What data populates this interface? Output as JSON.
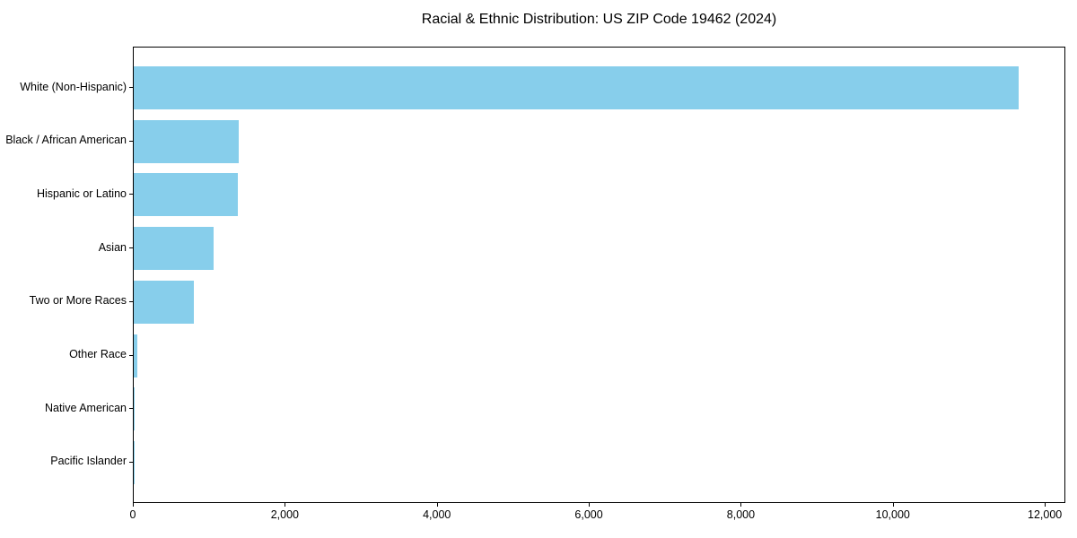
{
  "chart_data": {
    "type": "bar",
    "orientation": "horizontal",
    "title": "Racial & Ethnic Distribution: US ZIP Code 19462 (2024)",
    "categories": [
      "White (Non-Hispanic)",
      "Black / African American",
      "Hispanic or Latino",
      "Asian",
      "Two or More Races",
      "Other Race",
      "Native American",
      "Pacific Islander"
    ],
    "values": [
      11650,
      1380,
      1365,
      1050,
      790,
      45,
      10,
      4
    ],
    "xlabel": "",
    "ylabel": "",
    "xlim": [
      0,
      12270
    ],
    "x_ticks": [
      0,
      2000,
      4000,
      6000,
      8000,
      10000,
      12000
    ],
    "x_tick_labels": [
      "0",
      "2,000",
      "4,000",
      "6,000",
      "8,000",
      "10,000",
      "12,000"
    ],
    "bar_color": "#87CEEB",
    "axis_color": "#000000",
    "background_color": "#ffffff",
    "grid": false,
    "legend": null,
    "value_labels_shown": false
  }
}
